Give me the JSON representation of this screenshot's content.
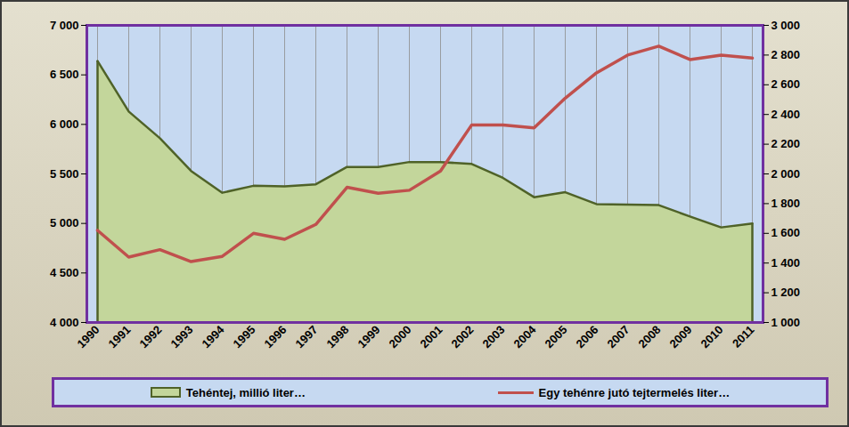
{
  "chart_data": {
    "type": "line",
    "categories": [
      "1990",
      "1991",
      "1992",
      "1993",
      "1994",
      "1995",
      "1996",
      "1997",
      "1998",
      "1999",
      "2000",
      "2001",
      "2002",
      "2003",
      "2004",
      "2005",
      "2006",
      "2007",
      "2008",
      "2009",
      "2010",
      "2011"
    ],
    "series": [
      {
        "name": "Tehéntej, millió liter…",
        "type": "area",
        "color": "#c3d69b",
        "values": [
          6640,
          6130,
          5860,
          5530,
          5310,
          5380,
          5375,
          5395,
          5570,
          5570,
          5620,
          5620,
          5600,
          5460,
          5265,
          5315,
          5195,
          5190,
          5185,
          5070,
          4960,
          5000
        ]
      },
      {
        "name": "Egy tehénre jutó tejtermelés liter…",
        "type": "line",
        "axis": "y2",
        "color": "#c0504d",
        "values": [
          1620,
          1440,
          1490,
          1410,
          1445,
          1600,
          1560,
          1660,
          1910,
          1870,
          1890,
          2020,
          2330,
          2330,
          2310,
          2510,
          2680,
          2800,
          2860,
          2770,
          2800,
          2780
        ]
      }
    ],
    "ylim": [
      4000,
      7000
    ],
    "yticks": [
      {
        "value": 4000,
        "label": "4 000"
      },
      {
        "value": 4500,
        "label": "4 500"
      },
      {
        "value": 5000,
        "label": "5 000"
      },
      {
        "value": 5500,
        "label": "5 500"
      },
      {
        "value": 6000,
        "label": "6 000"
      },
      {
        "value": 6500,
        "label": "6 500"
      },
      {
        "value": 7000,
        "label": "7 000"
      }
    ],
    "y2lim": [
      1000,
      3000
    ],
    "y2ticks": [
      {
        "value": 1000,
        "label": "1 000"
      },
      {
        "value": 1200,
        "label": "1 200"
      },
      {
        "value": 1400,
        "label": "1 400"
      },
      {
        "value": 1600,
        "label": "1 600"
      },
      {
        "value": 1800,
        "label": "1 800"
      },
      {
        "value": 2000,
        "label": "2 000"
      },
      {
        "value": 2200,
        "label": "2 200"
      },
      {
        "value": 2400,
        "label": "2 400"
      },
      {
        "value": 2600,
        "label": "2 600"
      },
      {
        "value": 2800,
        "label": "2 800"
      },
      {
        "value": 3000,
        "label": "3 000"
      }
    ],
    "grid": true,
    "legend": "bottom"
  }
}
